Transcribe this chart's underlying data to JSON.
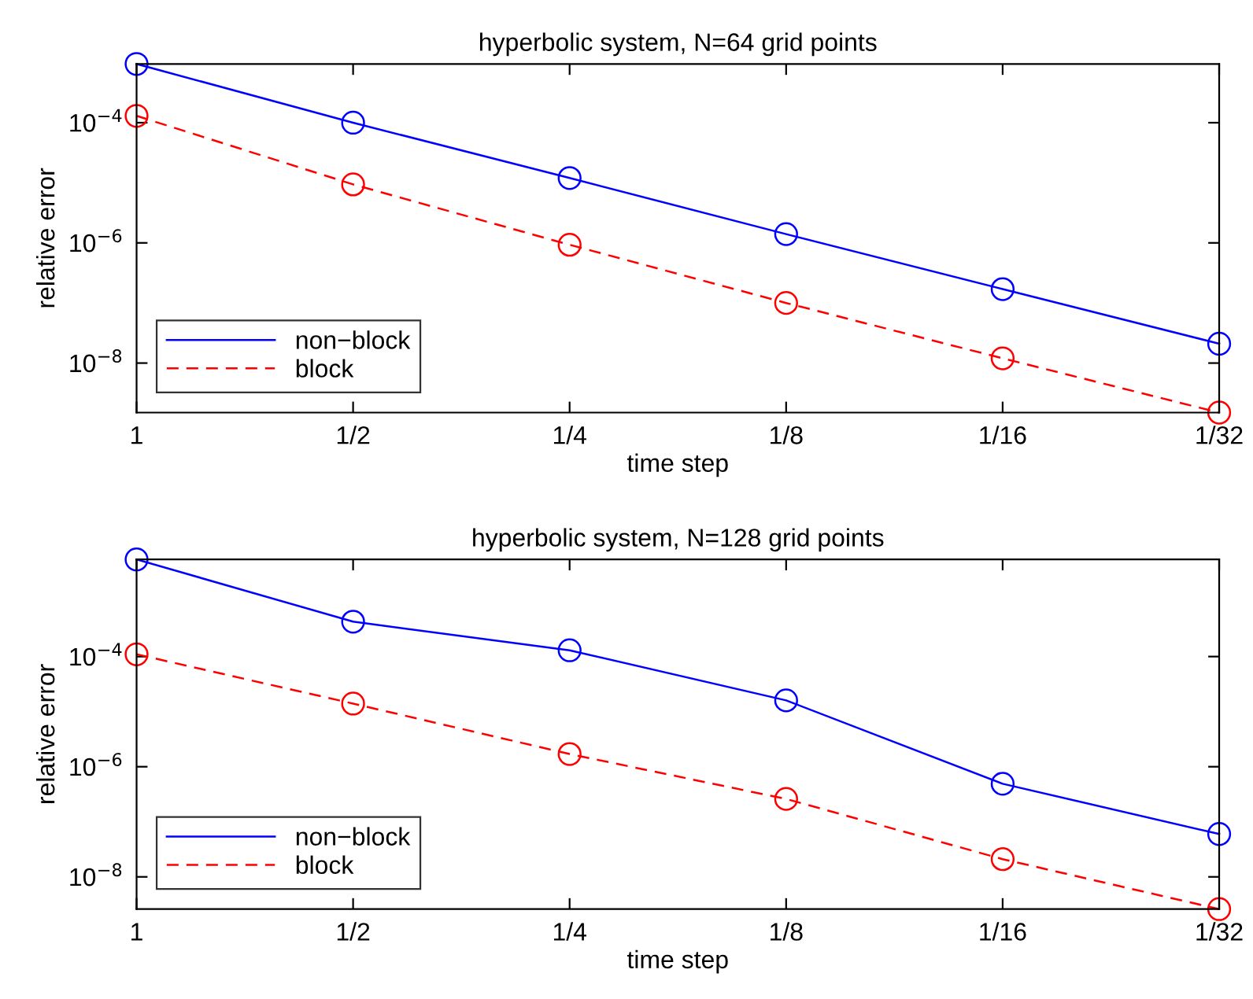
{
  "chart_data": [
    {
      "type": "line",
      "title": "hyperbolic system, N=64 grid points",
      "xlabel": "time step",
      "ylabel": "relative error",
      "categories": [
        "1",
        "1/2",
        "1/4",
        "1/8",
        "1/16",
        "1/32"
      ],
      "log": "y",
      "ylim": [
        1.5e-09,
        0.00095
      ],
      "yticks": [
        {
          "value": 0.0001,
          "label": "10$^{−4}$"
        },
        {
          "value": 1e-06,
          "label": "10$^{−6}$"
        },
        {
          "value": 1e-08,
          "label": "10$^{−8}$"
        }
      ],
      "legend": "bottom left",
      "marker": "circle",
      "grid": false,
      "series": [
        {
          "name": "non−block",
          "color": "#0000ff",
          "line_style": "solid",
          "values": [
            0.00095,
            0.0001,
            1.2e-05,
            1.4e-06,
            1.7e-07,
            2.1e-08
          ]
        },
        {
          "name": "block",
          "color": "#ff0000",
          "line_style": "dashed",
          "values": [
            0.00013,
            9.4e-06,
            9.3e-07,
            1e-07,
            1.2e-08,
            1.5e-09
          ]
        }
      ]
    },
    {
      "type": "line",
      "title": "hyperbolic system, N=128 grid points",
      "xlabel": "time step",
      "ylabel": "relative error",
      "categories": [
        "1",
        "1/2",
        "1/4",
        "1/8",
        "1/16",
        "1/32"
      ],
      "log": "y",
      "ylim": [
        2.6e-09,
        0.0058
      ],
      "yticks": [
        {
          "value": 0.0001,
          "label": "10$^{−4}$"
        },
        {
          "value": 1e-06,
          "label": "10$^{−6}$"
        },
        {
          "value": 1e-08,
          "label": "10$^{−8}$"
        }
      ],
      "legend": "bottom left",
      "marker": "circle",
      "grid": false,
      "series": [
        {
          "name": "non−block",
          "color": "#0000ff",
          "line_style": "solid",
          "values": [
            0.0058,
            0.00043,
            0.00013,
            1.6e-05,
            4.9e-07,
            6e-08
          ]
        },
        {
          "name": "block",
          "color": "#ff0000",
          "line_style": "dashed",
          "values": [
            0.00011,
            1.4e-05,
            1.7e-06,
            2.6e-07,
            2.1e-08,
            2.6e-09
          ]
        }
      ]
    }
  ]
}
